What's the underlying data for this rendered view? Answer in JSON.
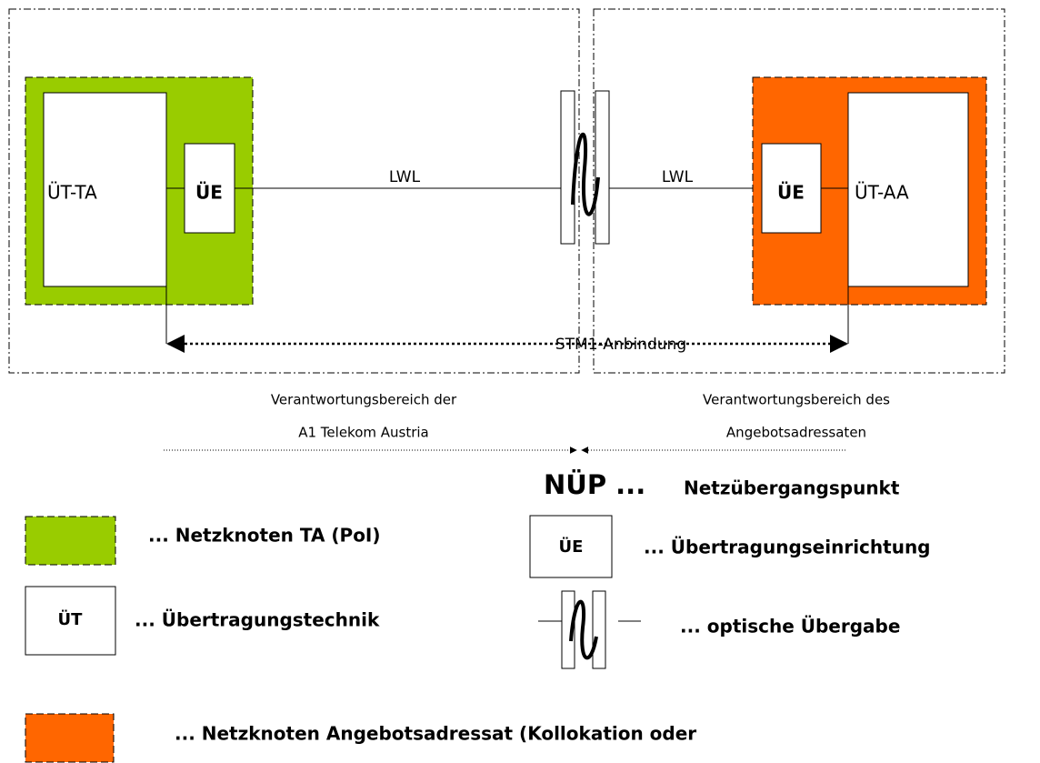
{
  "diagram": {
    "left_node": {
      "ut": "ÜT-TA",
      "ue": "ÜE"
    },
    "right_node": {
      "ut": "ÜT-AA",
      "ue": "ÜE"
    },
    "links": {
      "left": "LWL",
      "right": "LWL",
      "stm1": "STM1-Anbindung"
    },
    "responsibility": {
      "left": [
        "Verantwortungsbereich der",
        "A1 Telekom Austria"
      ],
      "right": [
        "Verantwortungsbereich des",
        "Angebotsadressaten"
      ]
    },
    "nup": {
      "abbr": "NÜP ...",
      "text": "Netzübergangspunkt"
    },
    "legend": [
      {
        "text": "... Netzknoten TA (PoI)"
      },
      {
        "symbol": "ÜE",
        "text": "... Übertragungseinrichtung"
      },
      {
        "symbol": "ÜT",
        "text": "... Übertragungstechnik"
      },
      {
        "text": "... optische Übergabe"
      },
      {
        "text": "... Netzknoten Angebotsadressat (Kollokation oder"
      }
    ]
  }
}
